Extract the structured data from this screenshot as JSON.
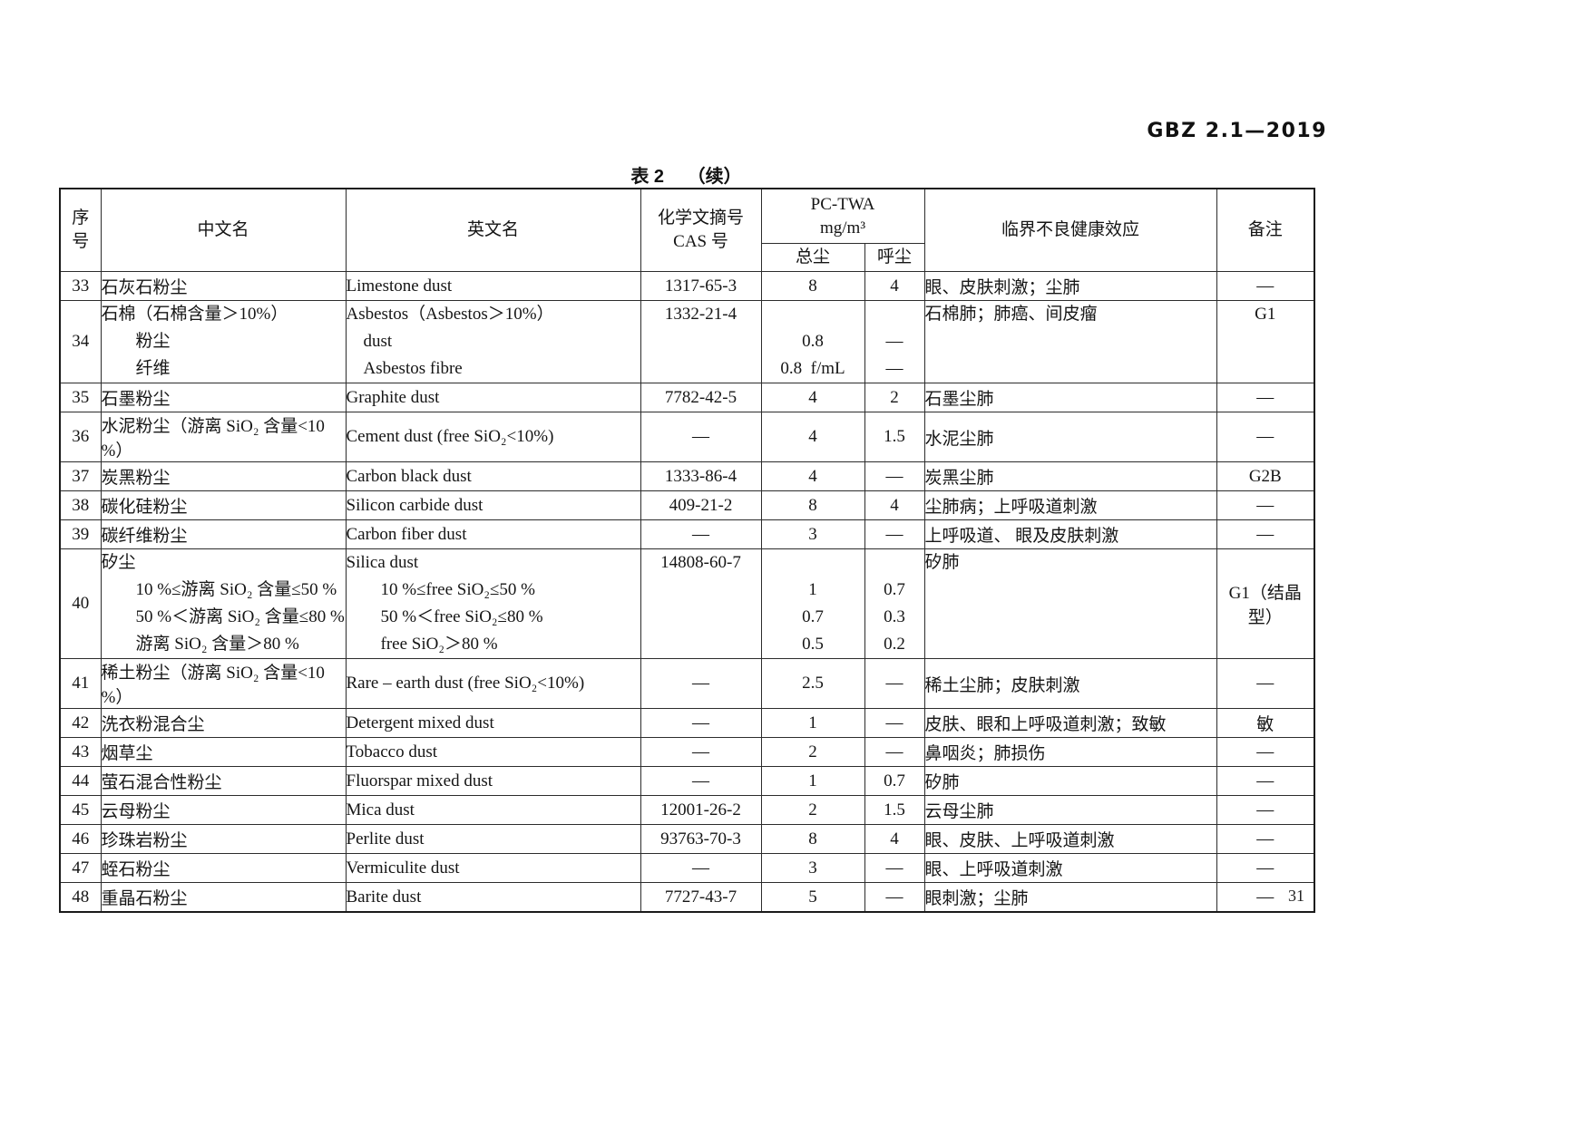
{
  "page": {
    "doc_code": "GBZ 2.1—2019",
    "table_caption_prefix": "表 2",
    "table_caption_suffix": "（续）",
    "page_number": "31"
  },
  "table": {
    "headers": {
      "no_line1": "序",
      "no_line2": "号",
      "cn": "中文名",
      "en": "英文名",
      "cas_line1": "化学文摘号",
      "cas_line2": "CAS 号",
      "pctwa_line1": "PC-TWA",
      "pctwa_line2": "mg/m³",
      "total": "总尘",
      "resp": "呼尘",
      "effect": "临界不良健康效应",
      "remark": "备注"
    },
    "rows": [
      {
        "no": "33",
        "cn": "石灰石粉尘",
        "en": "Limestone dust",
        "cas": "1317-65-3",
        "total": "8",
        "resp": "4",
        "effect": "眼、皮肤刺激；尘肺",
        "remark": "—"
      },
      {
        "no": "34",
        "cn": [
          "石棉（石棉含量＞10%）",
          "　　粉尘",
          "　　纤维"
        ],
        "en": [
          "Asbestos（Asbestos＞10%）",
          "　dust",
          "　Asbestos fibre"
        ],
        "cas": [
          "1332-21-4",
          "",
          ""
        ],
        "total": [
          "",
          "0.8",
          "0.8  f/mL"
        ],
        "resp": [
          "",
          "—",
          "—"
        ],
        "effect": [
          "石棉肺；肺癌、间皮瘤",
          "",
          ""
        ],
        "remark": [
          "G1",
          "",
          ""
        ]
      },
      {
        "no": "35",
        "cn": "石墨粉尘",
        "en": "Graphite dust",
        "cas": "7782-42-5",
        "total": "4",
        "resp": "2",
        "effect": "石墨尘肺",
        "remark": "—"
      },
      {
        "no": "36",
        "cn": "水泥粉尘（游离 SiO₂ 含量<10 %）",
        "en": "Cement dust (free SiO₂<10%)",
        "cas": "—",
        "total": "4",
        "resp": "1.5",
        "effect": "水泥尘肺",
        "remark": "—"
      },
      {
        "no": "37",
        "cn": "炭黑粉尘",
        "en": "Carbon black dust",
        "cas": "1333-86-4",
        "total": "4",
        "resp": "—",
        "effect": "炭黑尘肺",
        "remark": "G2B"
      },
      {
        "no": "38",
        "cn": "碳化硅粉尘",
        "en": "Silicon carbide dust",
        "cas": "409-21-2",
        "total": "8",
        "resp": "4",
        "effect": "尘肺病；上呼吸道刺激",
        "remark": "—"
      },
      {
        "no": "39",
        "cn": "碳纤维粉尘",
        "en": "Carbon fiber dust",
        "cas": "—",
        "total": "3",
        "resp": "—",
        "effect": "上呼吸道、 眼及皮肤刺激",
        "remark": "—"
      },
      {
        "no": "40",
        "cn": [
          "矽尘",
          "　　10 %≤游离 SiO₂ 含量≤50 %",
          "　　50 %＜游离 SiO₂ 含量≤80 %",
          "　　游离 SiO₂ 含量＞80 %"
        ],
        "en": [
          "Silica dust",
          "　　10 %≤free SiO₂≤50 %",
          "　　50 %＜free SiO₂≤80 %",
          "　　free SiO₂＞80 %"
        ],
        "cas": [
          "14808-60-7",
          "",
          "",
          ""
        ],
        "total": [
          "",
          "1",
          "0.7",
          "0.5"
        ],
        "resp": [
          "",
          "0.7",
          "0.3",
          "0.2"
        ],
        "effect": [
          "矽肺",
          "",
          "",
          ""
        ],
        "remark": "G1（结晶型）"
      },
      {
        "no": "41",
        "cn": "稀土粉尘（游离 SiO₂ 含量<10 %）",
        "en": "Rare – earth dust (free SiO₂<10%)",
        "cas": "—",
        "total": "2.5",
        "resp": "—",
        "effect": "稀土尘肺；皮肤刺激",
        "remark": "—"
      },
      {
        "no": "42",
        "cn": "洗衣粉混合尘",
        "en": "Detergent mixed dust",
        "cas": "—",
        "total": "1",
        "resp": "—",
        "effect": "皮肤、眼和上呼吸道刺激；致敏",
        "remark": "敏"
      },
      {
        "no": "43",
        "cn": "烟草尘",
        "en": "Tobacco dust",
        "cas": "—",
        "total": "2",
        "resp": "—",
        "effect": "鼻咽炎；肺损伤",
        "remark": "—"
      },
      {
        "no": "44",
        "cn": "萤石混合性粉尘",
        "en": "Fluorspar mixed dust",
        "cas": "—",
        "total": "1",
        "resp": "0.7",
        "effect": "矽肺",
        "remark": "—"
      },
      {
        "no": "45",
        "cn": "云母粉尘",
        "en": "Mica dust",
        "cas": "12001-26-2",
        "total": "2",
        "resp": "1.5",
        "effect": "云母尘肺",
        "remark": "—"
      },
      {
        "no": "46",
        "cn": "珍珠岩粉尘",
        "en": "Perlite dust",
        "cas": "93763-70-3",
        "total": "8",
        "resp": "4",
        "effect": "眼、皮肤、上呼吸道刺激",
        "remark": "—"
      },
      {
        "no": "47",
        "cn": "蛭石粉尘",
        "en": "Vermiculite dust",
        "cas": "—",
        "total": "3",
        "resp": "—",
        "effect": "眼、上呼吸道刺激",
        "remark": "—"
      },
      {
        "no": "48",
        "cn": "重晶石粉尘",
        "en": "Barite dust",
        "cas": "7727-43-7",
        "total": "5",
        "resp": "—",
        "effect": "眼刺激；尘肺",
        "remark": "—"
      }
    ]
  }
}
